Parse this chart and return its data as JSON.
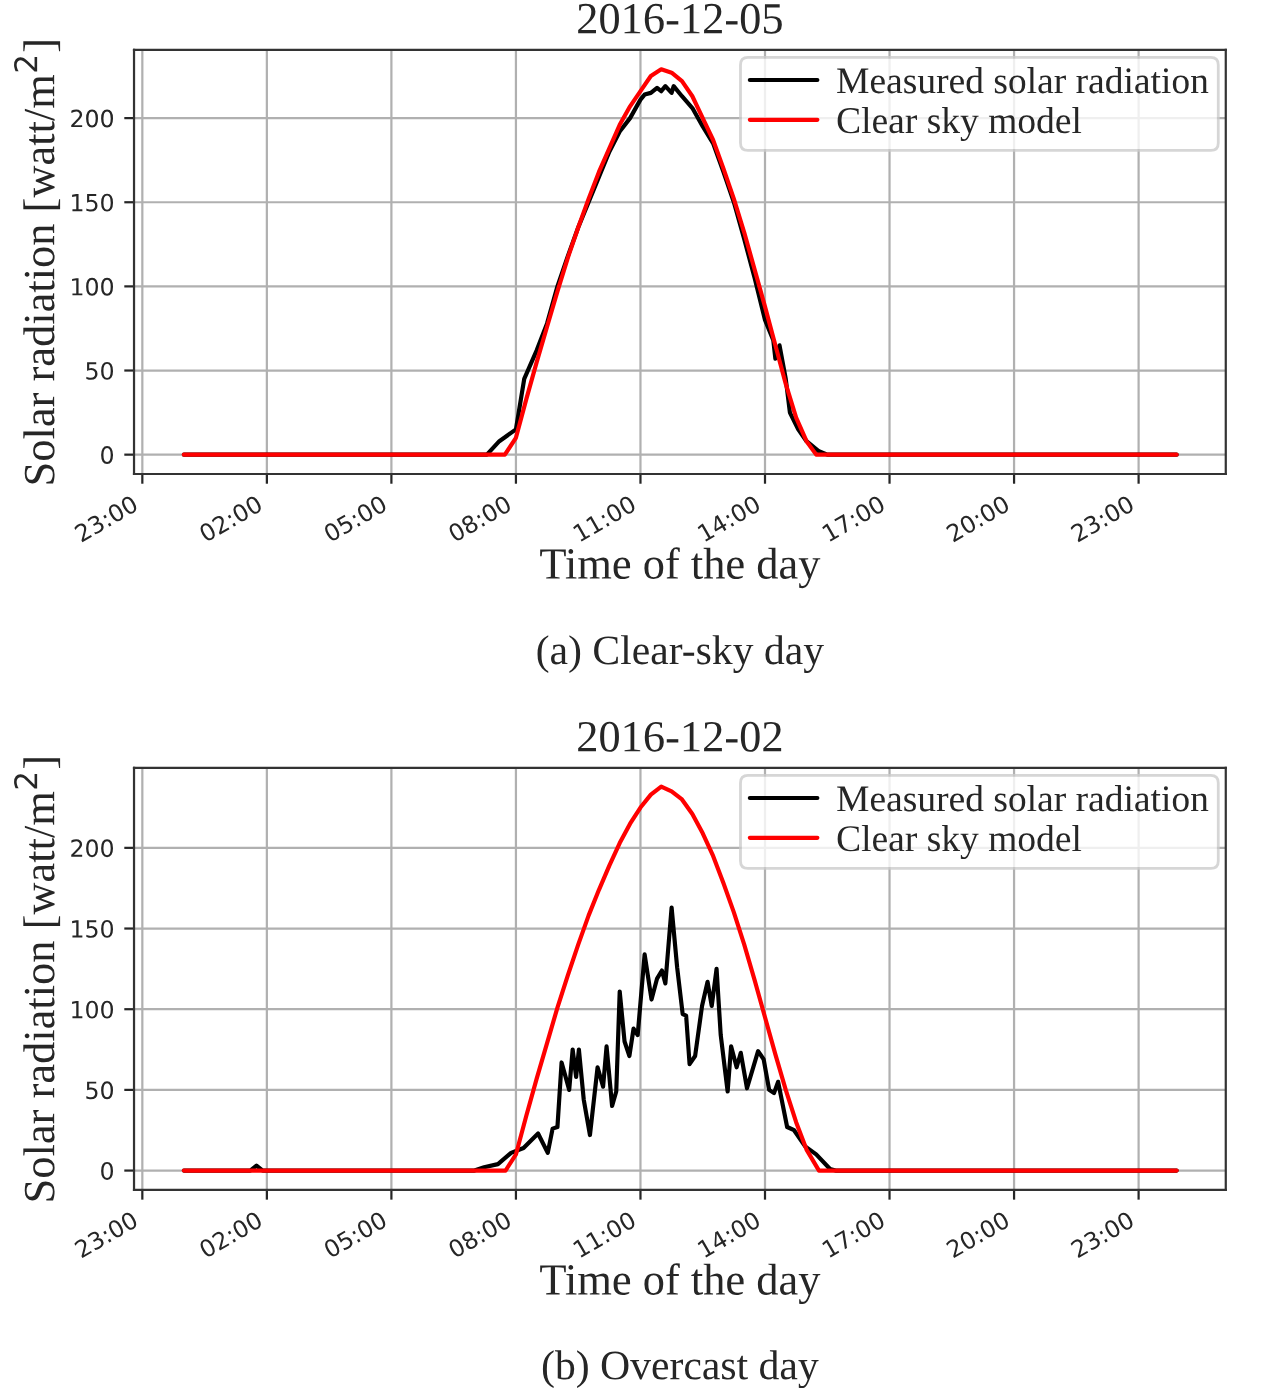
{
  "chart_data": [
    {
      "type": "line",
      "title": "2016-12-05",
      "xlabel": "Time of the day",
      "ylabel": "Solar radiation [watt/m$^{2}$]",
      "annotations": [
        "(a) Clear-sky day"
      ],
      "xlim": [
        "2016-12-04T22:48",
        "2016-12-06T01:06"
      ],
      "ylim": [
        -11.5,
        240.5
      ],
      "xticks": [
        {
          "value": "2016-12-04T23:00",
          "label": "23:00"
        },
        {
          "value": "2016-12-05T02:00",
          "label": "02:00"
        },
        {
          "value": "2016-12-05T05:00",
          "label": "05:00"
        },
        {
          "value": "2016-12-05T08:00",
          "label": "08:00"
        },
        {
          "value": "2016-12-05T11:00",
          "label": "11:00"
        },
        {
          "value": "2016-12-05T14:00",
          "label": "14:00"
        },
        {
          "value": "2016-12-05T17:00",
          "label": "17:00"
        },
        {
          "value": "2016-12-05T20:00",
          "label": "20:00"
        },
        {
          "value": "2016-12-05T23:00",
          "label": "23:00"
        }
      ],
      "yticks": [
        0,
        50,
        100,
        150,
        200
      ],
      "grid": true,
      "legend": "top right",
      "line_style": "solid",
      "marker": "none",
      "series": [
        {
          "name": "Measured solar radiation",
          "color": "#000000",
          "x": [
            "2016-12-05T00:00",
            "2016-12-05T07:18",
            "2016-12-05T07:36",
            "2016-12-05T08:00",
            "2016-12-05T08:12",
            "2016-12-05T08:30",
            "2016-12-05T08:45",
            "2016-12-05T09:00",
            "2016-12-05T09:15",
            "2016-12-05T09:30",
            "2016-12-05T09:45",
            "2016-12-05T10:00",
            "2016-12-05T10:15",
            "2016-12-05T10:30",
            "2016-12-05T10:45",
            "2016-12-05T11:00",
            "2016-12-05T11:06",
            "2016-12-05T11:15",
            "2016-12-05T11:24",
            "2016-12-05T11:30",
            "2016-12-05T11:36",
            "2016-12-05T11:45",
            "2016-12-05T11:48",
            "2016-12-05T12:00",
            "2016-12-05T12:15",
            "2016-12-05T12:30",
            "2016-12-05T12:45",
            "2016-12-05T13:00",
            "2016-12-05T13:15",
            "2016-12-05T13:30",
            "2016-12-05T13:45",
            "2016-12-05T14:00",
            "2016-12-05T14:12",
            "2016-12-05T14:15",
            "2016-12-05T14:21",
            "2016-12-05T14:30",
            "2016-12-05T14:36",
            "2016-12-05T14:48",
            "2016-12-05T15:00",
            "2016-12-05T15:18",
            "2016-12-05T15:30",
            "2016-12-05T23:55"
          ],
          "values": [
            0,
            0,
            8,
            15,
            45,
            62,
            78,
            100,
            118,
            135,
            150,
            165,
            180,
            192,
            200,
            211,
            214,
            215,
            218,
            216,
            219,
            215,
            219,
            213,
            206,
            195,
            185,
            168,
            150,
            128,
            105,
            80,
            68,
            57,
            65,
            45,
            25,
            15,
            8,
            2,
            0,
            0
          ]
        },
        {
          "name": "Clear sky model",
          "color": "#ff0000",
          "x": [
            "2016-12-05T00:00",
            "2016-12-05T07:44",
            "2016-12-05T08:00",
            "2016-12-05T08:15",
            "2016-12-05T08:30",
            "2016-12-05T08:45",
            "2016-12-05T09:00",
            "2016-12-05T09:15",
            "2016-12-05T09:30",
            "2016-12-05T09:45",
            "2016-12-05T10:00",
            "2016-12-05T10:15",
            "2016-12-05T10:30",
            "2016-12-05T10:45",
            "2016-12-05T11:00",
            "2016-12-05T11:15",
            "2016-12-05T11:30",
            "2016-12-05T11:45",
            "2016-12-05T12:00",
            "2016-12-05T12:15",
            "2016-12-05T12:30",
            "2016-12-05T12:45",
            "2016-12-05T13:00",
            "2016-12-05T13:15",
            "2016-12-05T13:30",
            "2016-12-05T13:45",
            "2016-12-05T14:00",
            "2016-12-05T14:15",
            "2016-12-05T14:30",
            "2016-12-05T14:45",
            "2016-12-05T15:00",
            "2016-12-05T15:14",
            "2016-12-05T23:55"
          ],
          "values": [
            0,
            0,
            10,
            33,
            55,
            76,
            97,
            117,
            135,
            152,
            168,
            182,
            196,
            207,
            216,
            225,
            229,
            227,
            222,
            213,
            200,
            187,
            170,
            152,
            132,
            110,
            88,
            65,
            42,
            22,
            8,
            0,
            0
          ]
        }
      ]
    },
    {
      "type": "line",
      "title": "2016-12-02",
      "xlabel": "Time of the day",
      "ylabel": "Solar radiation [watt/m$^{2}$]",
      "annotations": [
        "(b) Overcast day"
      ],
      "xlim": [
        "2016-12-01T22:48",
        "2016-12-03T01:06"
      ],
      "ylim": [
        -12,
        249.5
      ],
      "xticks": [
        {
          "value": "2016-12-01T23:00",
          "label": "23:00"
        },
        {
          "value": "2016-12-02T02:00",
          "label": "02:00"
        },
        {
          "value": "2016-12-02T05:00",
          "label": "05:00"
        },
        {
          "value": "2016-12-02T08:00",
          "label": "08:00"
        },
        {
          "value": "2016-12-02T11:00",
          "label": "11:00"
        },
        {
          "value": "2016-12-02T14:00",
          "label": "14:00"
        },
        {
          "value": "2016-12-02T17:00",
          "label": "17:00"
        },
        {
          "value": "2016-12-02T20:00",
          "label": "20:00"
        },
        {
          "value": "2016-12-02T23:00",
          "label": "23:00"
        }
      ],
      "yticks": [
        0,
        50,
        100,
        150,
        200
      ],
      "grid": true,
      "legend": "top right",
      "line_style": "solid",
      "marker": "none",
      "series": [
        {
          "name": "Measured solar radiation",
          "color": "#000000",
          "x": [
            "2016-12-02T00:00",
            "2016-12-02T01:36",
            "2016-12-02T01:45",
            "2016-12-02T01:54",
            "2016-12-02T07:00",
            "2016-12-02T07:14",
            "2016-12-02T07:34",
            "2016-12-02T07:53",
            "2016-12-02T08:11",
            "2016-12-02T08:32",
            "2016-12-02T08:46",
            "2016-12-02T08:53",
            "2016-12-02T09:00",
            "2016-12-02T09:06",
            "2016-12-02T09:17",
            "2016-12-02T09:22",
            "2016-12-02T09:27",
            "2016-12-02T09:31",
            "2016-12-02T09:38",
            "2016-12-02T09:47",
            "2016-12-02T09:58",
            "2016-12-02T10:06",
            "2016-12-02T10:11",
            "2016-12-02T10:19",
            "2016-12-02T10:25",
            "2016-12-02T10:30",
            "2016-12-02T10:37",
            "2016-12-02T10:44",
            "2016-12-02T10:50",
            "2016-12-02T10:56",
            "2016-12-02T11:06",
            "2016-12-02T11:16",
            "2016-12-02T11:24",
            "2016-12-02T11:31",
            "2016-12-02T11:36",
            "2016-12-02T11:45",
            "2016-12-02T11:53",
            "2016-12-02T12:01",
            "2016-12-02T12:06",
            "2016-12-02T12:11",
            "2016-12-02T12:19",
            "2016-12-02T12:29",
            "2016-12-02T12:37",
            "2016-12-02T12:43",
            "2016-12-02T12:50",
            "2016-12-02T12:56",
            "2016-12-02T13:06",
            "2016-12-02T13:11",
            "2016-12-02T13:19",
            "2016-12-02T13:25",
            "2016-12-02T13:34",
            "2016-12-02T13:50",
            "2016-12-02T13:58",
            "2016-12-02T14:06",
            "2016-12-02T14:13",
            "2016-12-02T14:19",
            "2016-12-02T14:32",
            "2016-12-02T14:42",
            "2016-12-02T14:58",
            "2016-12-02T15:14",
            "2016-12-02T15:34",
            "2016-12-02T15:42",
            "2016-12-02T23:55"
          ],
          "values": [
            0,
            0,
            3,
            0,
            0,
            2,
            4,
            11,
            14,
            23,
            11,
            26,
            27,
            67,
            50,
            75,
            58,
            75,
            44,
            22,
            64,
            52,
            77,
            40,
            49,
            111,
            80,
            71,
            88,
            84,
            134,
            106,
            119,
            124,
            116,
            163,
            126,
            97,
            96,
            66,
            71,
            102,
            117,
            102,
            125,
            84,
            49,
            77,
            64,
            73,
            51,
            74,
            69,
            50,
            48,
            55,
            27,
            25,
            15,
            10,
            1,
            0,
            0
          ]
        },
        {
          "name": "Clear sky model",
          "color": "#ff0000",
          "x": [
            "2016-12-02T00:00",
            "2016-12-02T07:45",
            "2016-12-02T08:00",
            "2016-12-02T08:15",
            "2016-12-02T08:30",
            "2016-12-02T08:45",
            "2016-12-02T09:00",
            "2016-12-02T09:15",
            "2016-12-02T09:30",
            "2016-12-02T09:45",
            "2016-12-02T10:00",
            "2016-12-02T10:15",
            "2016-12-02T10:30",
            "2016-12-02T10:45",
            "2016-12-02T11:00",
            "2016-12-02T11:15",
            "2016-12-02T11:30",
            "2016-12-02T11:45",
            "2016-12-02T12:00",
            "2016-12-02T12:15",
            "2016-12-02T12:30",
            "2016-12-02T12:45",
            "2016-12-02T13:00",
            "2016-12-02T13:15",
            "2016-12-02T13:30",
            "2016-12-02T13:45",
            "2016-12-02T14:00",
            "2016-12-02T14:15",
            "2016-12-02T14:30",
            "2016-12-02T14:45",
            "2016-12-02T15:00",
            "2016-12-02T15:18",
            "2016-12-02T23:55"
          ],
          "values": [
            0,
            0,
            10,
            34,
            57,
            79,
            101,
            121,
            140,
            158,
            174,
            189,
            203,
            215,
            225,
            233,
            238,
            235,
            230,
            221,
            209,
            195,
            178,
            160,
            140,
            118,
            95,
            72,
            50,
            30,
            13,
            0,
            0
          ]
        }
      ]
    }
  ]
}
